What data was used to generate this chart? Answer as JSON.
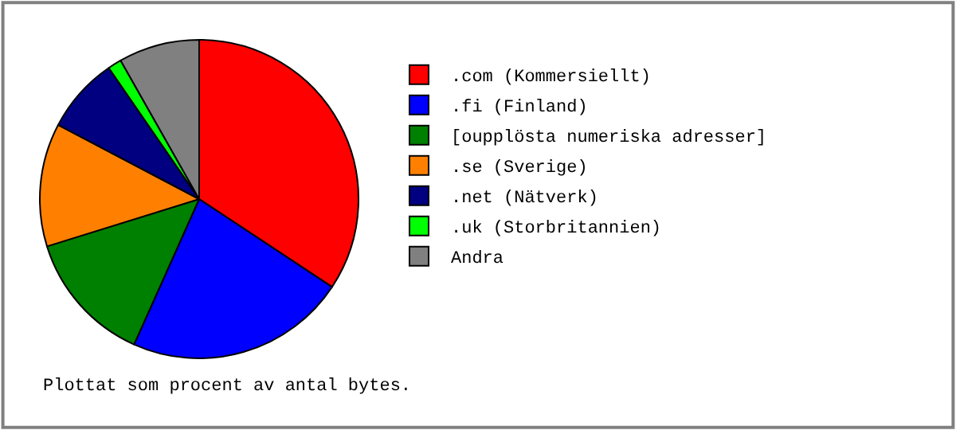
{
  "chart_data": {
    "type": "pie",
    "categories": [
      ".com (Kommersiellt)",
      ".fi (Finland)",
      "[oupplösta numeriska adresser]",
      ".se (Sverige)",
      ".net (Nätverk)",
      ".uk (Storbritannien)",
      "Andra"
    ],
    "values": [
      34.3,
      22.4,
      13.5,
      12.5,
      7.7,
      1.4,
      8.2
    ],
    "colors": [
      "#ff0000",
      "#0000ff",
      "#008000",
      "#ff8000",
      "#000080",
      "#00ff00",
      "#808080"
    ],
    "legend": "right",
    "annotations": [
      "Plottat som procent av antal bytes."
    ]
  }
}
